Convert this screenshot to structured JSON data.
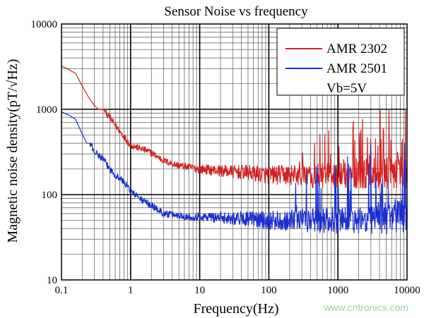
{
  "chart_data": {
    "type": "line",
    "title": "Sensor Noise vs frequency",
    "xlabel": "Frequency(Hz)",
    "ylabel": "Magnetic noise density(pT/√Hz)",
    "xscale": "log",
    "yscale": "log",
    "xlim": [
      0.1,
      10000
    ],
    "ylim": [
      10,
      10000
    ],
    "xticks": [
      "0.1",
      "1",
      "10",
      "100",
      "1000",
      "10000"
    ],
    "yticks": [
      "10",
      "100",
      "1000",
      "10000"
    ],
    "grid": true,
    "legend_position": "top-right",
    "legend_note": "Vb=5V",
    "series": [
      {
        "name": "AMR 2302",
        "color": "#d42020",
        "x": [
          0.1,
          0.13,
          0.16,
          0.2,
          0.25,
          0.3,
          0.4,
          0.5,
          0.6,
          0.7,
          0.8,
          0.9,
          1,
          1.5,
          2,
          3,
          4,
          5,
          7,
          10,
          20,
          50,
          100,
          200,
          500,
          1000,
          2000,
          5000,
          10000
        ],
        "values": [
          3800,
          3400,
          3100,
          2200,
          1600,
          1300,
          1050,
          800,
          650,
          550,
          480,
          420,
          380,
          340,
          310,
          250,
          230,
          220,
          210,
          200,
          190,
          180,
          170,
          170,
          165,
          165,
          170,
          175,
          180
        ],
        "noise_range_min": 120,
        "noise_range_max": 1000
      },
      {
        "name": "AMR 2501",
        "color": "#1a2fd0",
        "x": [
          0.1,
          0.13,
          0.16,
          0.2,
          0.25,
          0.3,
          0.4,
          0.5,
          0.6,
          0.7,
          0.8,
          0.9,
          1,
          1.5,
          2,
          3,
          4,
          5,
          7,
          10,
          20,
          50,
          100,
          200,
          500,
          1000,
          2000,
          5000,
          10000
        ],
        "values": [
          1100,
          1000,
          900,
          600,
          420,
          320,
          260,
          200,
          170,
          155,
          140,
          125,
          110,
          85,
          75,
          60,
          58,
          57,
          55,
          55,
          54,
          52,
          50,
          50,
          50,
          50,
          52,
          55,
          55
        ],
        "noise_range_min": 30,
        "noise_range_max": 400
      }
    ]
  },
  "watermark": "www.cntronics.com"
}
